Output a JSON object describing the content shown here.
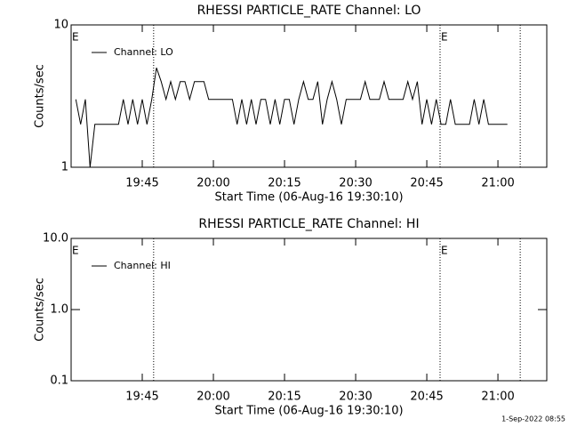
{
  "chart_data": [
    {
      "type": "line",
      "title": "RHESSI PARTICLE_RATE Channel: LO",
      "x_label": "Start Time (06-Aug-16 19:30:10)",
      "y_label": "Counts/sec",
      "log_y": true,
      "legend": "upper left",
      "xlim": [
        1170,
        1270.3
      ],
      "ylim": [
        1,
        10
      ],
      "xticks": [
        {
          "value": 1185,
          "label": "19:45"
        },
        {
          "value": 1200,
          "label": "20:00"
        },
        {
          "value": 1215,
          "label": "20:15"
        },
        {
          "value": 1230,
          "label": "20:30"
        },
        {
          "value": 1245,
          "label": "20:45"
        },
        {
          "value": 1260,
          "label": "21:00"
        }
      ],
      "yticks": [
        1,
        10
      ],
      "vlines": [
        1187.4,
        1247.8,
        1264.7
      ],
      "annotations": [
        {
          "text": "E",
          "x": 1170
        },
        {
          "text": "E",
          "x": 1247.8
        }
      ],
      "x": [
        1171,
        1172,
        1173,
        1174,
        1175,
        1176,
        1177,
        1178,
        1179,
        1180,
        1181,
        1182,
        1183,
        1184,
        1185,
        1186,
        1187,
        1188,
        1189,
        1190,
        1191,
        1192,
        1193,
        1194,
        1195,
        1196,
        1197,
        1198,
        1199,
        1200,
        1201,
        1202,
        1203,
        1204,
        1205,
        1206,
        1207,
        1208,
        1209,
        1210,
        1211,
        1212,
        1213,
        1214,
        1215,
        1216,
        1217,
        1218,
        1219,
        1220,
        1221,
        1222,
        1223,
        1224,
        1225,
        1226,
        1227,
        1228,
        1229,
        1230,
        1231,
        1232,
        1233,
        1234,
        1235,
        1236,
        1237,
        1238,
        1239,
        1240,
        1241,
        1242,
        1243,
        1244,
        1245,
        1246,
        1247,
        1248,
        1249,
        1250,
        1251,
        1252,
        1253,
        1254,
        1255,
        1256,
        1257,
        1258,
        1259,
        1260,
        1261,
        1262
      ],
      "series": [
        {
          "name": "Channel: LO",
          "color": "#000000",
          "values": [
            3,
            2,
            3,
            1,
            2,
            2,
            2,
            2,
            2,
            2,
            3,
            2,
            3,
            2,
            3,
            2,
            3,
            5,
            4,
            3,
            4,
            3,
            4,
            4,
            3,
            4,
            4,
            4,
            3,
            3,
            3,
            3,
            3,
            3,
            2,
            3,
            2,
            3,
            2,
            3,
            3,
            2,
            3,
            2,
            3,
            3,
            2,
            3,
            4,
            3,
            3,
            4,
            2,
            3,
            4,
            3,
            2,
            3,
            3,
            3,
            3,
            4,
            3,
            3,
            3,
            4,
            3,
            3,
            3,
            3,
            4,
            3,
            4,
            2,
            3,
            2,
            3,
            2,
            2,
            3,
            2,
            2,
            2,
            2,
            3,
            2,
            3,
            2,
            2,
            2,
            2,
            2
          ]
        }
      ]
    },
    {
      "type": "line",
      "title": "RHESSI PARTICLE_RATE Channel: HI",
      "x_label": "Start Time (06-Aug-16 19:30:10)",
      "y_label": "Counts/sec",
      "log_y": true,
      "legend": "upper left",
      "xlim": [
        1170,
        1270.3
      ],
      "ylim": [
        0.1,
        10
      ],
      "xticks": [
        {
          "value": 1185,
          "label": "19:45"
        },
        {
          "value": 1200,
          "label": "20:00"
        },
        {
          "value": 1215,
          "label": "20:15"
        },
        {
          "value": 1230,
          "label": "20:30"
        },
        {
          "value": 1245,
          "label": "20:45"
        },
        {
          "value": 1260,
          "label": "21:00"
        }
      ],
      "yticks": [
        0.1,
        {
          "value": 1,
          "label": "1.0"
        },
        {
          "value": 10,
          "label": "10.0"
        }
      ],
      "vlines": [
        1187.4,
        1247.8,
        1264.7
      ],
      "annotations": [
        {
          "text": "E",
          "x": 1170
        },
        {
          "text": "E",
          "x": 1247.8
        }
      ],
      "x": [],
      "series": [
        {
          "name": "Channel: HI",
          "color": "#000000",
          "values": []
        }
      ]
    }
  ],
  "footer": "1-Sep-2022 08:55"
}
